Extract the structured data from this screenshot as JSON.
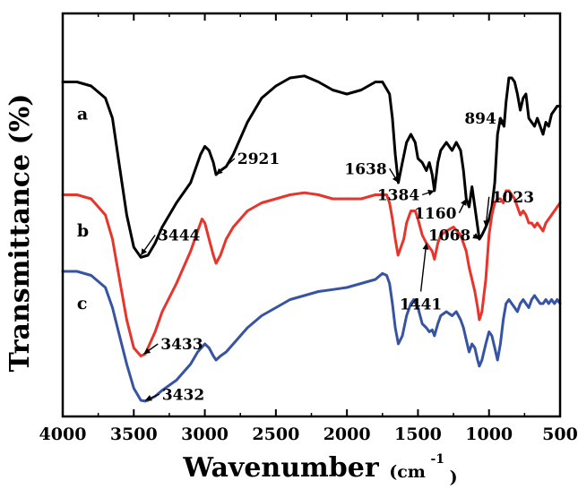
{
  "chart_data": {
    "type": "line",
    "xlabel": "Wavenumber",
    "xlabel_unit": "(cm",
    "xlabel_unit_exp": "-1",
    "xlabel_unit_close": ")",
    "ylabel": "Transmittance (%)",
    "x_reversed": true,
    "xlim": [
      4000,
      500
    ],
    "ylim": [
      0,
      100
    ],
    "x_ticks": [
      4000,
      3500,
      3000,
      2500,
      2000,
      1500,
      1000,
      500
    ],
    "show_y_tick_labels": false,
    "grid": false,
    "series": [
      {
        "name": "a",
        "color": "#000000",
        "points": [
          [
            4000,
            83
          ],
          [
            3900,
            83
          ],
          [
            3800,
            82
          ],
          [
            3700,
            79
          ],
          [
            3650,
            74
          ],
          [
            3600,
            62
          ],
          [
            3550,
            50
          ],
          [
            3500,
            42
          ],
          [
            3450,
            39.5
          ],
          [
            3400,
            40
          ],
          [
            3350,
            43
          ],
          [
            3300,
            47
          ],
          [
            3200,
            53
          ],
          [
            3100,
            58
          ],
          [
            3030,
            65
          ],
          [
            3000,
            67
          ],
          [
            2970,
            66
          ],
          [
            2940,
            63
          ],
          [
            2921,
            60
          ],
          [
            2890,
            61
          ],
          [
            2850,
            62
          ],
          [
            2800,
            65
          ],
          [
            2700,
            73
          ],
          [
            2600,
            79
          ],
          [
            2500,
            82
          ],
          [
            2400,
            84
          ],
          [
            2300,
            84.5
          ],
          [
            2200,
            83
          ],
          [
            2100,
            81
          ],
          [
            2000,
            80
          ],
          [
            1900,
            81
          ],
          [
            1800,
            83
          ],
          [
            1750,
            83
          ],
          [
            1700,
            80
          ],
          [
            1680,
            74
          ],
          [
            1660,
            65
          ],
          [
            1638,
            58
          ],
          [
            1610,
            63
          ],
          [
            1580,
            68
          ],
          [
            1550,
            70
          ],
          [
            1520,
            68
          ],
          [
            1500,
            64
          ],
          [
            1470,
            63
          ],
          [
            1441,
            61
          ],
          [
            1420,
            63
          ],
          [
            1400,
            60
          ],
          [
            1384,
            56
          ],
          [
            1360,
            63
          ],
          [
            1340,
            66
          ],
          [
            1300,
            68
          ],
          [
            1260,
            66
          ],
          [
            1230,
            68
          ],
          [
            1200,
            66
          ],
          [
            1180,
            61
          ],
          [
            1160,
            54
          ],
          [
            1140,
            52
          ],
          [
            1120,
            57
          ],
          [
            1100,
            52
          ],
          [
            1068,
            44
          ],
          [
            1050,
            45
          ],
          [
            1023,
            47
          ],
          [
            1000,
            49
          ],
          [
            980,
            52
          ],
          [
            960,
            58
          ],
          [
            940,
            70
          ],
          [
            920,
            74
          ],
          [
            894,
            72
          ],
          [
            880,
            78
          ],
          [
            860,
            84
          ],
          [
            840,
            84
          ],
          [
            820,
            83
          ],
          [
            800,
            80
          ],
          [
            780,
            76
          ],
          [
            760,
            79
          ],
          [
            740,
            80
          ],
          [
            720,
            74
          ],
          [
            700,
            73
          ],
          [
            680,
            72
          ],
          [
            660,
            74
          ],
          [
            640,
            72
          ],
          [
            620,
            70
          ],
          [
            600,
            73
          ],
          [
            580,
            72
          ],
          [
            560,
            75
          ],
          [
            540,
            76
          ],
          [
            520,
            77
          ],
          [
            500,
            77
          ]
        ]
      },
      {
        "name": "b",
        "color": "#e8342b",
        "points": [
          [
            4000,
            55
          ],
          [
            3900,
            55
          ],
          [
            3800,
            54
          ],
          [
            3700,
            50
          ],
          [
            3650,
            44
          ],
          [
            3600,
            34
          ],
          [
            3550,
            24
          ],
          [
            3500,
            17
          ],
          [
            3450,
            15
          ],
          [
            3420,
            15.5
          ],
          [
            3400,
            17
          ],
          [
            3350,
            21
          ],
          [
            3300,
            26
          ],
          [
            3200,
            33
          ],
          [
            3100,
            41
          ],
          [
            3050,
            46
          ],
          [
            3020,
            49
          ],
          [
            3000,
            48
          ],
          [
            2970,
            44
          ],
          [
            2940,
            40
          ],
          [
            2921,
            38
          ],
          [
            2890,
            40
          ],
          [
            2850,
            44
          ],
          [
            2800,
            47
          ],
          [
            2700,
            51
          ],
          [
            2600,
            53
          ],
          [
            2500,
            54
          ],
          [
            2400,
            55
          ],
          [
            2300,
            55.5
          ],
          [
            2200,
            55
          ],
          [
            2100,
            54
          ],
          [
            2000,
            54
          ],
          [
            1900,
            54
          ],
          [
            1800,
            55
          ],
          [
            1750,
            55
          ],
          [
            1720,
            55
          ],
          [
            1700,
            53
          ],
          [
            1680,
            49
          ],
          [
            1660,
            44
          ],
          [
            1640,
            40
          ],
          [
            1620,
            42
          ],
          [
            1600,
            44
          ],
          [
            1580,
            48
          ],
          [
            1550,
            51
          ],
          [
            1520,
            51
          ],
          [
            1500,
            49
          ],
          [
            1470,
            45
          ],
          [
            1441,
            43
          ],
          [
            1420,
            42
          ],
          [
            1400,
            41
          ],
          [
            1384,
            39
          ],
          [
            1360,
            43
          ],
          [
            1340,
            45
          ],
          [
            1300,
            46
          ],
          [
            1250,
            47
          ],
          [
            1200,
            45
          ],
          [
            1160,
            41
          ],
          [
            1140,
            37
          ],
          [
            1120,
            34
          ],
          [
            1100,
            31
          ],
          [
            1080,
            27
          ],
          [
            1068,
            24
          ],
          [
            1050,
            26
          ],
          [
            1023,
            34
          ],
          [
            1000,
            45
          ],
          [
            980,
            50
          ],
          [
            960,
            53
          ],
          [
            940,
            54
          ],
          [
            920,
            54
          ],
          [
            900,
            53
          ],
          [
            880,
            56
          ],
          [
            860,
            56
          ],
          [
            840,
            55
          ],
          [
            820,
            54
          ],
          [
            800,
            52
          ],
          [
            780,
            50
          ],
          [
            760,
            51
          ],
          [
            740,
            50
          ],
          [
            720,
            48
          ],
          [
            700,
            48
          ],
          [
            680,
            47
          ],
          [
            660,
            48
          ],
          [
            640,
            47
          ],
          [
            620,
            46
          ],
          [
            600,
            48
          ],
          [
            580,
            49
          ],
          [
            560,
            50
          ],
          [
            540,
            51
          ],
          [
            520,
            52
          ],
          [
            500,
            53
          ]
        ]
      },
      {
        "name": "c",
        "color": "#3753a4",
        "points": [
          [
            4000,
            36
          ],
          [
            3900,
            36
          ],
          [
            3800,
            35
          ],
          [
            3700,
            32
          ],
          [
            3650,
            27
          ],
          [
            3600,
            20
          ],
          [
            3550,
            13
          ],
          [
            3500,
            7
          ],
          [
            3450,
            4
          ],
          [
            3420,
            3.8
          ],
          [
            3400,
            4
          ],
          [
            3350,
            5
          ],
          [
            3300,
            6.5
          ],
          [
            3200,
            9
          ],
          [
            3100,
            13
          ],
          [
            3050,
            16
          ],
          [
            3000,
            18
          ],
          [
            2970,
            17
          ],
          [
            2940,
            15
          ],
          [
            2921,
            14
          ],
          [
            2890,
            15
          ],
          [
            2850,
            16
          ],
          [
            2800,
            18
          ],
          [
            2700,
            22
          ],
          [
            2600,
            25
          ],
          [
            2500,
            27
          ],
          [
            2400,
            29
          ],
          [
            2300,
            30
          ],
          [
            2200,
            31
          ],
          [
            2100,
            31.5
          ],
          [
            2000,
            32
          ],
          [
            1900,
            33
          ],
          [
            1800,
            34
          ],
          [
            1750,
            35.5
          ],
          [
            1720,
            35
          ],
          [
            1700,
            33
          ],
          [
            1680,
            28
          ],
          [
            1660,
            22
          ],
          [
            1638,
            18
          ],
          [
            1610,
            20
          ],
          [
            1580,
            25
          ],
          [
            1550,
            28
          ],
          [
            1530,
            29
          ],
          [
            1500,
            27
          ],
          [
            1470,
            23
          ],
          [
            1441,
            22
          ],
          [
            1420,
            21
          ],
          [
            1400,
            21.5
          ],
          [
            1384,
            20
          ],
          [
            1360,
            23
          ],
          [
            1340,
            25
          ],
          [
            1300,
            26
          ],
          [
            1260,
            25
          ],
          [
            1230,
            26
          ],
          [
            1200,
            24
          ],
          [
            1180,
            22
          ],
          [
            1160,
            19
          ],
          [
            1140,
            16
          ],
          [
            1120,
            18
          ],
          [
            1100,
            17
          ],
          [
            1080,
            14
          ],
          [
            1068,
            12.5
          ],
          [
            1050,
            14
          ],
          [
            1023,
            18
          ],
          [
            1000,
            21
          ],
          [
            980,
            20
          ],
          [
            960,
            17
          ],
          [
            940,
            14
          ],
          [
            920,
            18
          ],
          [
            900,
            24
          ],
          [
            880,
            28
          ],
          [
            860,
            29
          ],
          [
            840,
            28
          ],
          [
            820,
            27
          ],
          [
            800,
            26
          ],
          [
            780,
            28
          ],
          [
            760,
            29
          ],
          [
            740,
            28
          ],
          [
            720,
            27
          ],
          [
            700,
            29
          ],
          [
            680,
            30
          ],
          [
            660,
            29
          ],
          [
            640,
            28
          ],
          [
            620,
            28
          ],
          [
            600,
            29
          ],
          [
            580,
            28
          ],
          [
            560,
            29
          ],
          [
            540,
            28
          ],
          [
            520,
            29
          ],
          [
            500,
            28
          ]
        ]
      }
    ],
    "series_labels": [
      {
        "text": "a",
        "x": 3900,
        "y": 75
      },
      {
        "text": "b",
        "x": 3900,
        "y": 46
      },
      {
        "text": "c",
        "x": 3900,
        "y": 28
      }
    ],
    "annotations": [
      {
        "text": "2921",
        "x": 2921,
        "y": 60,
        "lx": 2790,
        "ly": 64,
        "label_anchor": "start"
      },
      {
        "text": "1638",
        "x": 1638,
        "y": 58,
        "lx": 1700,
        "ly": 61.5,
        "label_anchor": "end"
      },
      {
        "text": "1384",
        "x": 1384,
        "y": 56,
        "lx": 1470,
        "ly": 55,
        "label_anchor": "end"
      },
      {
        "text": "894",
        "x": 894,
        "y": 72,
        "lx": 930,
        "ly": 74,
        "label_anchor": "end"
      },
      {
        "text": "1160",
        "x": 1160,
        "y": 54,
        "lx": 1210,
        "ly": 50.5,
        "label_anchor": "end"
      },
      {
        "text": "1023",
        "x": 1023,
        "y": 47,
        "lx": 1000,
        "ly": 54.5,
        "label_anchor": "start"
      },
      {
        "text": "1068",
        "x": 1068,
        "y": 44,
        "lx": 1110,
        "ly": 45,
        "label_anchor": "end"
      },
      {
        "text": "3444",
        "x": 3450,
        "y": 40,
        "lx": 3350,
        "ly": 45,
        "label_anchor": "start"
      },
      {
        "text": "1441",
        "x": 1441,
        "y": 43,
        "lx": 1480,
        "ly": 31,
        "label_anchor": "middle"
      },
      {
        "text": "3433",
        "x": 3430,
        "y": 15.5,
        "lx": 3330,
        "ly": 18,
        "label_anchor": "start"
      },
      {
        "text": "3432",
        "x": 3420,
        "y": 4,
        "lx": 3320,
        "ly": 5.5,
        "label_anchor": "start"
      }
    ]
  }
}
